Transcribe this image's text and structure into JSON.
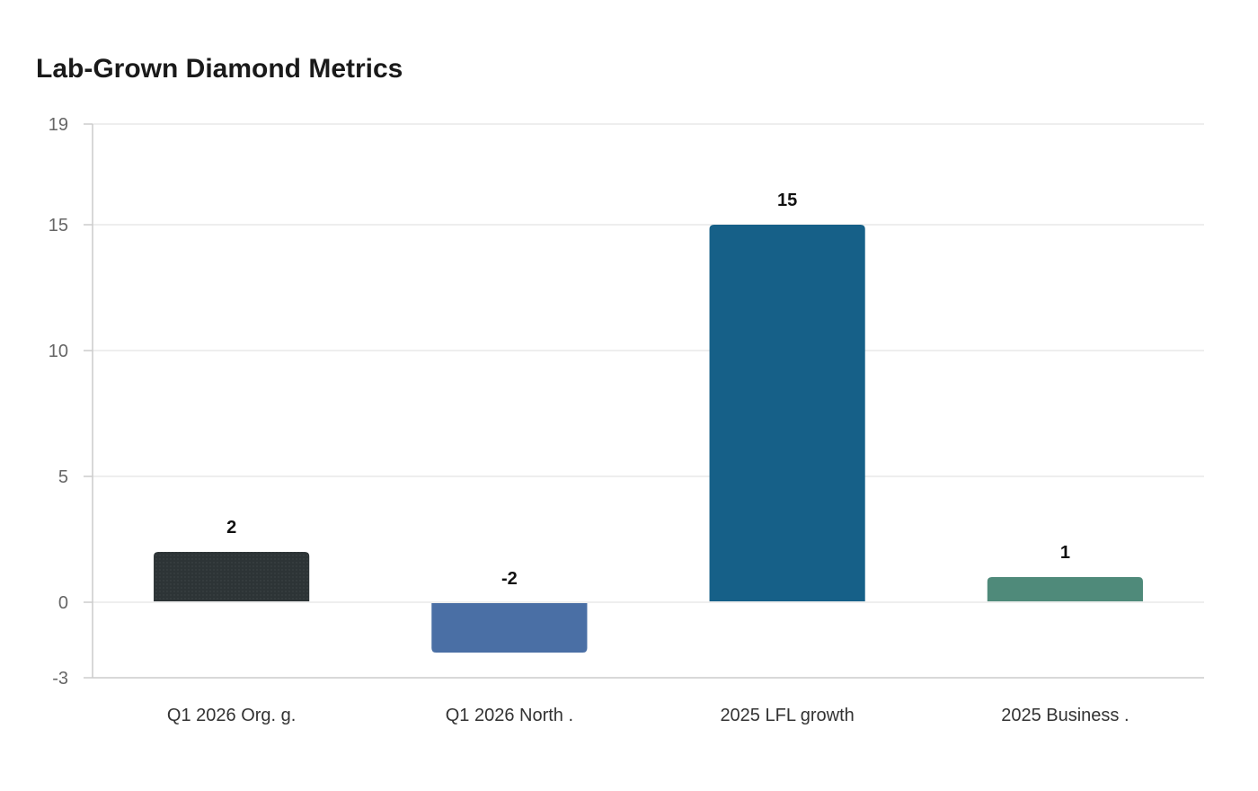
{
  "chart_data": {
    "type": "bar",
    "title": "Lab-Grown Diamond Metrics",
    "xlabel": "",
    "ylabel": "",
    "categories": [
      "Q1 2026 Org. g.",
      "Q1 2026 North .",
      "2025 LFL growth",
      "2025 Business ."
    ],
    "values": [
      2,
      -2,
      15,
      1
    ],
    "value_labels": [
      "2",
      "-2",
      "15",
      "1"
    ],
    "colors": [
      "#2d3436",
      "#4a6fa5",
      "#166088",
      "#4f8a7a"
    ],
    "ylim": [
      -3,
      19
    ],
    "yticks": [
      19,
      15,
      10,
      5,
      0,
      -3
    ],
    "ytick_labels": [
      "19",
      "15",
      "10",
      "5",
      "0",
      "-3"
    ],
    "grid": true,
    "legend": "none"
  }
}
